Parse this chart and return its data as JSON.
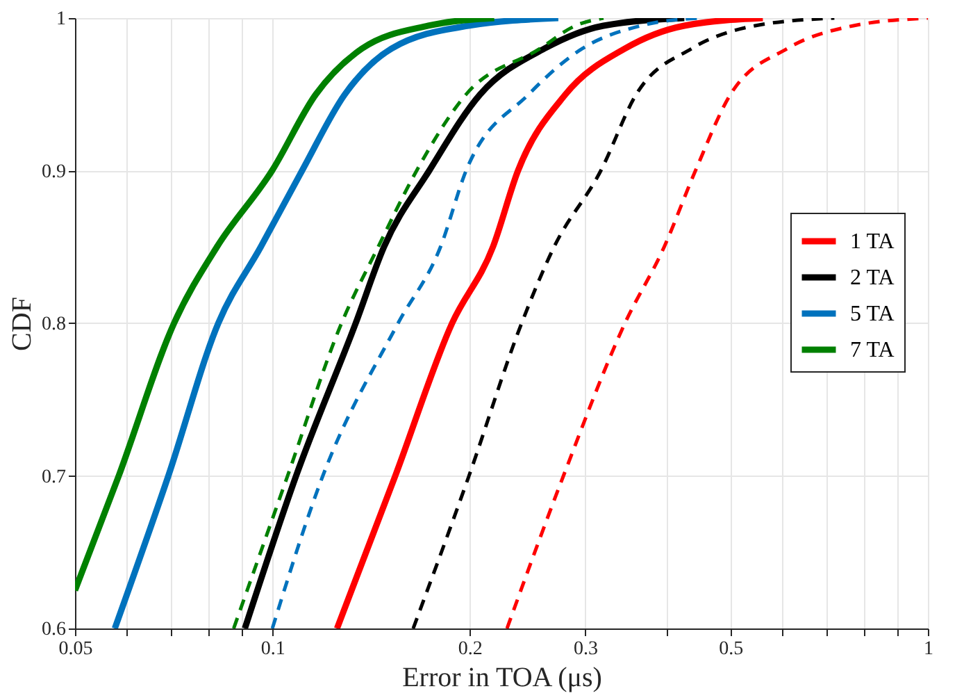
{
  "chart_data": {
    "type": "line",
    "xlabel": "Error in TOA (μs)",
    "ylabel": "CDF",
    "log": "x",
    "xlim": [
      0.05,
      1
    ],
    "ylim": [
      0.6,
      1
    ],
    "xticks": [
      0.05,
      {
        "value": 0.06,
        "label": null
      },
      {
        "value": 0.07,
        "label": null
      },
      {
        "value": 0.08,
        "label": null
      },
      {
        "value": 0.09,
        "label": null
      },
      0.1,
      0.2,
      0.3,
      {
        "value": 0.4,
        "label": null
      },
      0.5,
      {
        "value": 0.6,
        "label": null
      },
      {
        "value": 0.7,
        "label": null
      },
      {
        "value": 0.8,
        "label": null
      },
      {
        "value": 0.9,
        "label": null
      },
      1
    ],
    "yticks": [
      0.6,
      0.7,
      0.8,
      0.9,
      1
    ],
    "grid": true,
    "legend": "right",
    "marker": "none",
    "series": [
      {
        "name": "1 TA",
        "color": "#ff0000",
        "line_style": "solid",
        "x": [
          0.1255,
          0.154,
          0.188,
          0.217,
          0.237,
          0.28,
          0.345,
          0.425,
          0.56
        ],
        "values": [
          0.6,
          0.7,
          0.8,
          0.85,
          0.9,
          0.95,
          0.98,
          0.995,
          1
        ]
      },
      {
        "name": "2 TA",
        "color": "#000000",
        "line_style": "solid",
        "x": [
          0.0908,
          0.1087,
          0.134,
          0.148,
          0.1735,
          0.2075,
          0.26,
          0.32,
          0.425
        ],
        "values": [
          0.6,
          0.7,
          0.8,
          0.85,
          0.9,
          0.95,
          0.98,
          0.995,
          1
        ]
      },
      {
        "name": "5 TA",
        "color": "#0072bd",
        "line_style": "solid",
        "x": [
          0.0575,
          0.0694,
          0.0827,
          0.096,
          0.111,
          0.129,
          0.152,
          0.199,
          0.273
        ],
        "values": [
          0.6,
          0.7,
          0.8,
          0.85,
          0.9,
          0.95,
          0.98,
          0.995,
          1
        ]
      },
      {
        "name": "7 TA",
        "color": "#008000",
        "line_style": "solid",
        "x": [
          0.05,
          0.0583,
          0.0708,
          0.0823,
          0.0999,
          0.1165,
          0.137,
          0.173,
          0.218
        ],
        "values": [
          0.625,
          0.7,
          0.8,
          0.85,
          0.9,
          0.95,
          0.98,
          0.995,
          1
        ]
      },
      {
        "color": "#ff0000",
        "line_style": "dashed",
        "x": [
          0.228,
          0.278,
          0.345,
          0.396,
          0.442,
          0.5,
          0.61,
          0.77,
          1.0
        ],
        "values": [
          0.6,
          0.7,
          0.8,
          0.85,
          0.9,
          0.95,
          0.98,
          0.995,
          1
        ]
      },
      {
        "color": "#000000",
        "line_style": "dashed",
        "x": [
          0.164,
          0.1995,
          0.24,
          0.269,
          0.317,
          0.359,
          0.436,
          0.545,
          0.72
        ],
        "values": [
          0.6,
          0.7,
          0.8,
          0.85,
          0.9,
          0.95,
          0.98,
          0.995,
          1
        ]
      },
      {
        "color": "#0072bd",
        "line_style": "dashed",
        "x": [
          0.1,
          0.1194,
          0.1555,
          0.1805,
          0.1975,
          0.246,
          0.297,
          0.365,
          0.447
        ],
        "values": [
          0.6,
          0.7,
          0.8,
          0.85,
          0.9,
          0.95,
          0.98,
          0.995,
          1
        ]
      },
      {
        "color": "#008000",
        "line_style": "dashed",
        "x": [
          0.0873,
          0.1055,
          0.1275,
          0.145,
          0.166,
          0.1975,
          0.256,
          0.29,
          0.32
        ],
        "values": [
          0.6,
          0.7,
          0.8,
          0.85,
          0.9,
          0.95,
          0.98,
          0.995,
          1
        ]
      }
    ]
  }
}
